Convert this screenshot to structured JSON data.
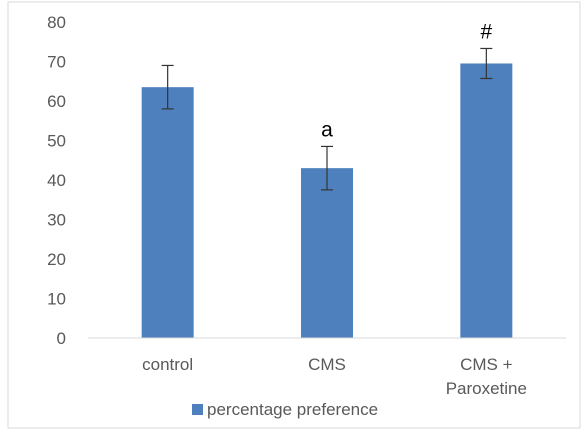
{
  "chart_data": {
    "type": "bar",
    "title": "",
    "xlabel": "",
    "ylabel": "",
    "categories": [
      "control",
      "CMS",
      "CMS + Paroxetine"
    ],
    "category_lines": [
      [
        "control"
      ],
      [
        "CMS"
      ],
      [
        "CMS +",
        "Paroxetine"
      ]
    ],
    "series": [
      {
        "name": "percentage preference",
        "values": [
          63.5,
          43,
          69.5
        ],
        "errors": [
          5.5,
          5.5,
          3.8
        ],
        "color": "#4e80bd"
      }
    ],
    "annotations": [
      "",
      "a",
      "#"
    ],
    "ylim": [
      0,
      80
    ],
    "yticks": [
      0,
      10,
      20,
      30,
      40,
      50,
      60,
      70,
      80
    ],
    "grid": false,
    "legend_position": "bottom"
  },
  "colors": {
    "bar": "#4e80bd",
    "axis": "#d9d9d9",
    "text": "#595959",
    "error_bar": "#333333"
  }
}
